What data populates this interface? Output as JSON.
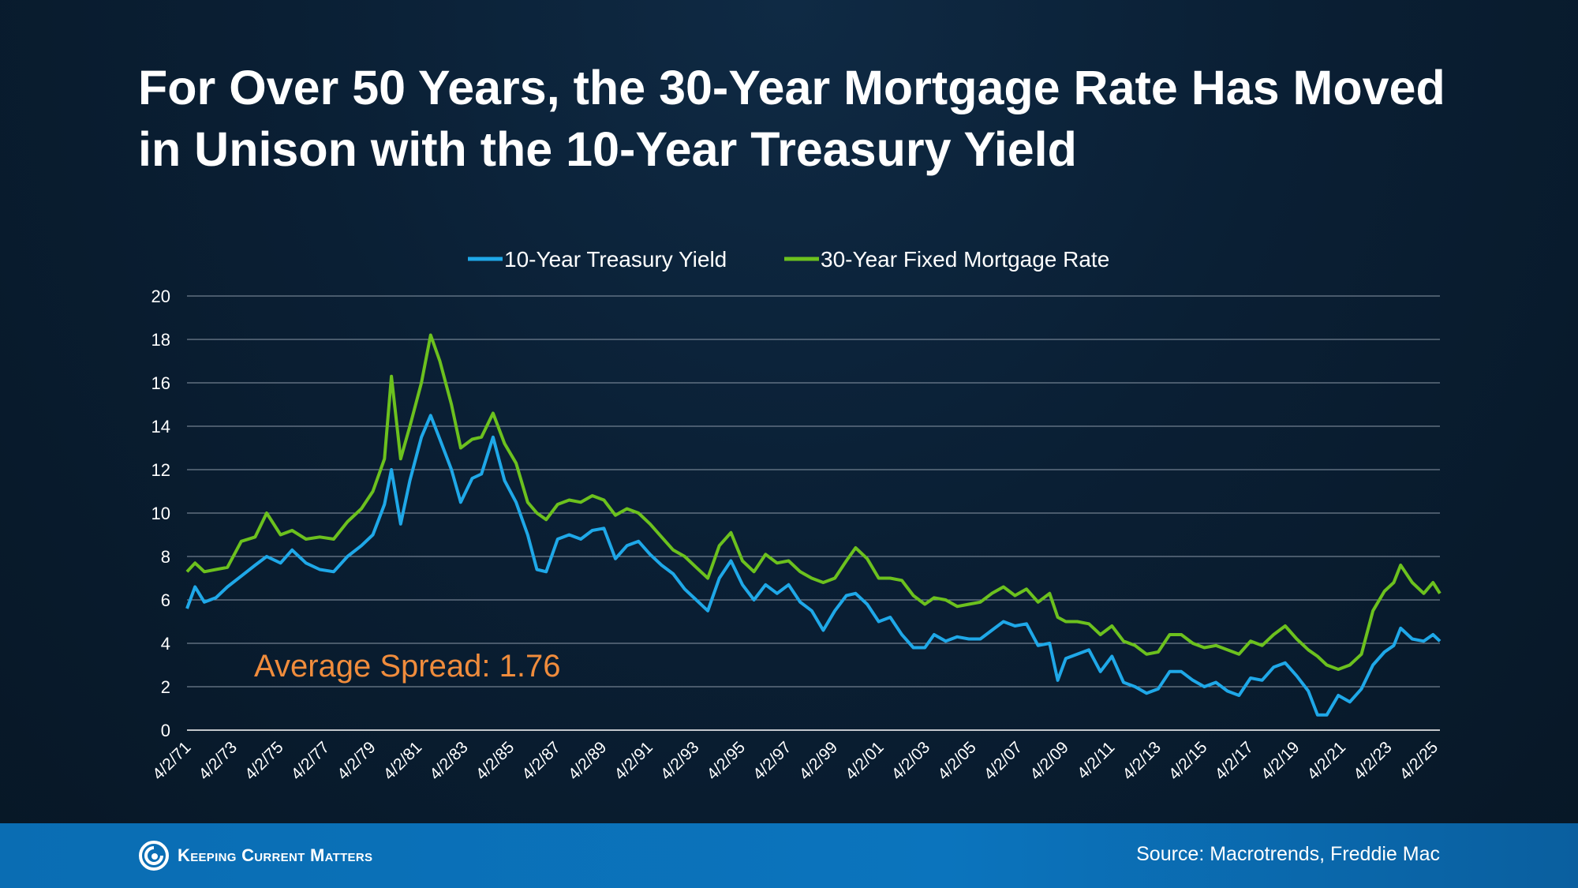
{
  "title": "For Over 50 Years, the 30-Year Mortgage Rate Has Moved in Unison with the 10-Year Treasury Yield",
  "footer": {
    "logo_text": "Keeping Current Matters",
    "source": "Source: Macrotrends, Freddie Mac"
  },
  "colors": {
    "treasury": "#1fa8e8",
    "mortgage": "#6cc11e",
    "annotation": "#f08c3c",
    "grid": "#8a97a6"
  },
  "chart_data": {
    "type": "line",
    "title": "For Over 50 Years, the 30-Year Mortgage Rate Has Moved in Unison with the 10-Year Treasury Yield",
    "xlabel": "",
    "ylabel": "",
    "ylim": [
      0,
      20
    ],
    "xlim": [
      1971.25,
      2025.5
    ],
    "yticks": [
      "0",
      "2",
      "4",
      "6",
      "8",
      "10",
      "12",
      "14",
      "16",
      "18",
      "20"
    ],
    "xticks": [
      "4/2/71",
      "4/2/73",
      "4/2/75",
      "4/2/77",
      "4/2/79",
      "4/2/81",
      "4/2/83",
      "4/2/85",
      "4/2/87",
      "4/2/89",
      "4/2/91",
      "4/2/93",
      "4/2/95",
      "4/2/97",
      "4/2/99",
      "4/2/01",
      "4/2/03",
      "4/2/05",
      "4/2/07",
      "4/2/09",
      "4/2/11",
      "4/2/13",
      "4/2/15",
      "4/2/17",
      "4/2/19",
      "4/2/21",
      "4/2/23",
      "4/2/25"
    ],
    "grid": true,
    "legend_position": "top-center",
    "annotation": "Average Spread: 1.76",
    "series": [
      {
        "name": "10-Year Treasury Yield",
        "x": [
          1971.25,
          1971.6,
          1972.0,
          1972.5,
          1973.0,
          1973.6,
          1974.2,
          1974.7,
          1975.3,
          1975.8,
          1976.4,
          1977.0,
          1977.6,
          1978.2,
          1978.8,
          1979.3,
          1979.8,
          1980.1,
          1980.5,
          1980.9,
          1981.4,
          1981.8,
          1982.2,
          1982.7,
          1983.1,
          1983.6,
          1984.0,
          1984.5,
          1985.0,
          1985.5,
          1986.0,
          1986.4,
          1986.8,
          1987.3,
          1987.8,
          1988.3,
          1988.8,
          1989.3,
          1989.8,
          1990.3,
          1990.8,
          1991.3,
          1991.8,
          1992.3,
          1992.8,
          1993.3,
          1993.8,
          1994.3,
          1994.8,
          1995.3,
          1995.8,
          1996.3,
          1996.8,
          1997.3,
          1997.8,
          1998.3,
          1998.8,
          1999.3,
          1999.8,
          2000.2,
          2000.7,
          2001.2,
          2001.7,
          2002.2,
          2002.7,
          2003.2,
          2003.6,
          2004.1,
          2004.6,
          2005.1,
          2005.6,
          2006.1,
          2006.6,
          2007.1,
          2007.6,
          2008.1,
          2008.6,
          2008.95,
          2009.3,
          2009.8,
          2010.3,
          2010.8,
          2011.3,
          2011.8,
          2012.3,
          2012.8,
          2013.3,
          2013.8,
          2014.3,
          2014.8,
          2015.3,
          2015.8,
          2016.3,
          2016.8,
          2017.3,
          2017.8,
          2018.3,
          2018.8,
          2019.3,
          2019.8,
          2020.2,
          2020.6,
          2021.1,
          2021.6,
          2022.1,
          2022.6,
          2023.1,
          2023.5,
          2023.8,
          2024.3,
          2024.8,
          2025.2,
          2025.5
        ],
        "values": [
          5.6,
          6.6,
          5.9,
          6.1,
          6.6,
          7.1,
          7.6,
          8.0,
          7.7,
          8.3,
          7.7,
          7.4,
          7.3,
          8.0,
          8.5,
          9.0,
          10.4,
          12.0,
          9.5,
          11.5,
          13.5,
          14.5,
          13.4,
          12.0,
          10.5,
          11.6,
          11.8,
          13.5,
          11.5,
          10.5,
          9.0,
          7.4,
          7.3,
          8.8,
          9.0,
          8.8,
          9.2,
          9.3,
          7.9,
          8.5,
          8.7,
          8.1,
          7.6,
          7.2,
          6.5,
          6.0,
          5.5,
          7.0,
          7.8,
          6.7,
          6.0,
          6.7,
          6.3,
          6.7,
          5.9,
          5.5,
          4.6,
          5.5,
          6.2,
          6.3,
          5.8,
          5.0,
          5.2,
          4.4,
          3.8,
          3.8,
          4.4,
          4.1,
          4.3,
          4.2,
          4.2,
          4.6,
          5.0,
          4.8,
          4.9,
          3.9,
          4.0,
          2.3,
          3.3,
          3.5,
          3.7,
          2.7,
          3.4,
          2.2,
          2.0,
          1.7,
          1.9,
          2.7,
          2.7,
          2.3,
          2.0,
          2.2,
          1.8,
          1.6,
          2.4,
          2.3,
          2.9,
          3.1,
          2.5,
          1.8,
          0.7,
          0.7,
          1.6,
          1.3,
          1.9,
          3.0,
          3.6,
          3.9,
          4.7,
          4.2,
          4.1,
          4.4,
          4.1
        ]
      },
      {
        "name": "30-Year Fixed Mortgage Rate",
        "x": [
          1971.25,
          1971.6,
          1972.0,
          1972.5,
          1973.0,
          1973.6,
          1974.2,
          1974.7,
          1975.3,
          1975.8,
          1976.4,
          1977.0,
          1977.6,
          1978.2,
          1978.8,
          1979.3,
          1979.8,
          1980.1,
          1980.5,
          1980.9,
          1981.4,
          1981.8,
          1982.2,
          1982.7,
          1983.1,
          1983.6,
          1984.0,
          1984.5,
          1985.0,
          1985.5,
          1986.0,
          1986.4,
          1986.8,
          1987.3,
          1987.8,
          1988.3,
          1988.8,
          1989.3,
          1989.8,
          1990.3,
          1990.8,
          1991.3,
          1991.8,
          1992.3,
          1992.8,
          1993.3,
          1993.8,
          1994.3,
          1994.8,
          1995.3,
          1995.8,
          1996.3,
          1996.8,
          1997.3,
          1997.8,
          1998.3,
          1998.8,
          1999.3,
          1999.8,
          2000.2,
          2000.7,
          2001.2,
          2001.7,
          2002.2,
          2002.7,
          2003.2,
          2003.6,
          2004.1,
          2004.6,
          2005.1,
          2005.6,
          2006.1,
          2006.6,
          2007.1,
          2007.6,
          2008.1,
          2008.6,
          2008.95,
          2009.3,
          2009.8,
          2010.3,
          2010.8,
          2011.3,
          2011.8,
          2012.3,
          2012.8,
          2013.3,
          2013.8,
          2014.3,
          2014.8,
          2015.3,
          2015.8,
          2016.3,
          2016.8,
          2017.3,
          2017.8,
          2018.3,
          2018.8,
          2019.3,
          2019.8,
          2020.2,
          2020.6,
          2021.1,
          2021.6,
          2022.1,
          2022.6,
          2023.1,
          2023.5,
          2023.8,
          2024.3,
          2024.8,
          2025.2,
          2025.5
        ],
        "values": [
          7.3,
          7.7,
          7.3,
          7.4,
          7.5,
          8.7,
          8.9,
          10.0,
          9.0,
          9.2,
          8.8,
          8.9,
          8.8,
          9.6,
          10.2,
          11.0,
          12.5,
          16.3,
          12.5,
          14.0,
          16.0,
          18.2,
          17.0,
          15.0,
          13.0,
          13.4,
          13.5,
          14.6,
          13.2,
          12.3,
          10.5,
          10.0,
          9.7,
          10.4,
          10.6,
          10.5,
          10.8,
          10.6,
          9.9,
          10.2,
          10.0,
          9.5,
          8.9,
          8.3,
          8.0,
          7.5,
          7.0,
          8.5,
          9.1,
          7.8,
          7.3,
          8.1,
          7.7,
          7.8,
          7.3,
          7.0,
          6.8,
          7.0,
          7.8,
          8.4,
          7.9,
          7.0,
          7.0,
          6.9,
          6.2,
          5.8,
          6.1,
          6.0,
          5.7,
          5.8,
          5.9,
          6.3,
          6.6,
          6.2,
          6.5,
          5.9,
          6.3,
          5.2,
          5.0,
          5.0,
          4.9,
          4.4,
          4.8,
          4.1,
          3.9,
          3.5,
          3.6,
          4.4,
          4.4,
          4.0,
          3.8,
          3.9,
          3.7,
          3.5,
          4.1,
          3.9,
          4.4,
          4.8,
          4.2,
          3.7,
          3.4,
          3.0,
          2.8,
          3.0,
          3.5,
          5.5,
          6.4,
          6.8,
          7.6,
          6.8,
          6.3,
          6.8,
          6.3
        ]
      }
    ]
  }
}
